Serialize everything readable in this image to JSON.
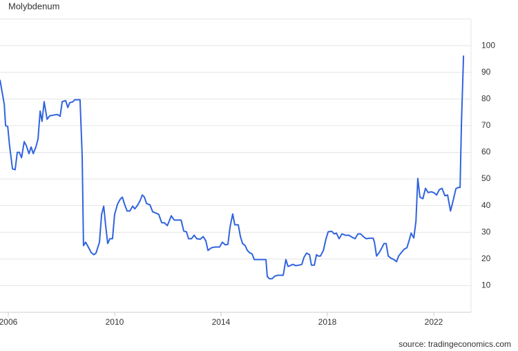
{
  "chart_data": {
    "type": "line",
    "title": "Molybdenum",
    "source": "source: tradingeconomics.com",
    "x": [
      2005.69,
      2005.85,
      2005.9,
      2005.98,
      2006.05,
      2006.16,
      2006.26,
      2006.34,
      2006.42,
      2006.5,
      2006.6,
      2006.68,
      2006.78,
      2006.86,
      2006.94,
      2007.04,
      2007.12,
      2007.2,
      2007.27,
      2007.35,
      2007.46,
      2007.56,
      2007.72,
      2007.85,
      2007.95,
      2008.03,
      2008.16,
      2008.24,
      2008.31,
      2008.42,
      2008.5,
      2008.63,
      2008.7,
      2008.78,
      2008.83,
      2008.91,
      2009.02,
      2009.12,
      2009.22,
      2009.3,
      2009.43,
      2009.51,
      2009.59,
      2009.66,
      2009.74,
      2009.82,
      2009.92,
      2010.0,
      2010.11,
      2010.21,
      2010.29,
      2010.37,
      2010.47,
      2010.57,
      2010.68,
      2010.76,
      2010.86,
      2010.96,
      2011.04,
      2011.12,
      2011.2,
      2011.33,
      2011.43,
      2011.56,
      2011.66,
      2011.77,
      2011.87,
      2011.98,
      2012.05,
      2012.13,
      2012.24,
      2012.39,
      2012.5,
      2012.6,
      2012.7,
      2012.78,
      2012.89,
      2012.99,
      2013.09,
      2013.22,
      2013.33,
      2013.43,
      2013.51,
      2013.64,
      2013.79,
      2013.95,
      2014.05,
      2014.16,
      2014.26,
      2014.34,
      2014.44,
      2014.52,
      2014.65,
      2014.73,
      2014.81,
      2014.91,
      2014.99,
      2015.07,
      2015.17,
      2015.25,
      2015.35,
      2015.51,
      2015.69,
      2015.74,
      2015.82,
      2015.92,
      2016.03,
      2016.13,
      2016.24,
      2016.34,
      2016.44,
      2016.52,
      2016.6,
      2016.7,
      2016.81,
      2016.94,
      2017.04,
      2017.12,
      2017.22,
      2017.33,
      2017.4,
      2017.51,
      2017.59,
      2017.66,
      2017.74,
      2017.85,
      2017.95,
      2018.03,
      2018.16,
      2018.26,
      2018.34,
      2018.44,
      2018.55,
      2018.68,
      2018.81,
      2018.94,
      2019.04,
      2019.15,
      2019.25,
      2019.35,
      2019.46,
      2019.59,
      2019.72,
      2019.77,
      2019.85,
      2019.95,
      2020.05,
      2020.13,
      2020.21,
      2020.29,
      2020.39,
      2020.5,
      2020.6,
      2020.68,
      2020.78,
      2020.89,
      2020.99,
      2021.07,
      2021.15,
      2021.25,
      2021.33,
      2021.4,
      2021.48,
      2021.59,
      2021.69,
      2021.79,
      2021.9,
      2022.0,
      2022.11,
      2022.21,
      2022.31,
      2022.42,
      2022.52,
      2022.63,
      2022.73,
      2022.83,
      2022.91,
      2022.99,
      2023.04,
      2023.12
    ],
    "values": [
      87.2,
      78,
      70,
      69.7,
      62.5,
      53.8,
      53.5,
      60,
      60,
      58,
      64,
      62.5,
      59.5,
      62,
      59.5,
      62,
      65,
      75.5,
      71.6,
      79,
      72.4,
      73.7,
      74,
      74.2,
      73.5,
      79,
      79.4,
      76.8,
      78.6,
      78.9,
      79.7,
      79.7,
      79.7,
      58.7,
      25,
      26.3,
      24.3,
      22.4,
      21.6,
      22.2,
      26.3,
      36.7,
      39.8,
      32.8,
      25.8,
      27.6,
      27.6,
      36.7,
      40.6,
      42.4,
      43.2,
      40.6,
      38,
      38,
      39.8,
      38.8,
      40.1,
      41.9,
      44,
      43.2,
      40.8,
      40.3,
      37.7,
      37.2,
      36.7,
      33.6,
      33.6,
      32.5,
      34.1,
      36.2,
      34.6,
      34.6,
      34.6,
      30.5,
      30.2,
      27.6,
      27.6,
      28.9,
      27.6,
      27.4,
      28.4,
      26.8,
      23.2,
      24.2,
      24.5,
      24.5,
      26.3,
      25.3,
      25.5,
      32,
      36.9,
      32.8,
      32.8,
      28.4,
      25.8,
      25,
      23.2,
      22.4,
      21.9,
      19.8,
      19.8,
      19.8,
      19.8,
      13.4,
      12.6,
      12.6,
      13.6,
      13.9,
      13.9,
      13.9,
      19.8,
      17.2,
      17.5,
      18,
      17.5,
      17.7,
      18,
      20.6,
      22.2,
      21.6,
      17.7,
      17.7,
      21.6,
      21.1,
      21.1,
      23.2,
      27.6,
      30.2,
      30.4,
      29.4,
      29.7,
      27.6,
      29.4,
      28.9,
      28.9,
      28.1,
      27.6,
      29.4,
      29.4,
      28.4,
      27.6,
      27.8,
      27.8,
      26.3,
      21.1,
      22.4,
      24.2,
      25.8,
      25.8,
      21.1,
      20.3,
      19.8,
      19,
      21.1,
      22.4,
      23.7,
      24.2,
      26.8,
      29.7,
      27.9,
      34.1,
      50.2,
      43.2,
      42.6,
      46.5,
      44.9,
      45.2,
      44.9,
      44,
      46,
      46.5,
      43.7,
      44,
      38,
      41.9,
      46.3,
      46.8,
      46.8,
      70.4,
      96.3
    ],
    "color": "#2f63de",
    "xlim": [
      2005.69,
      2023.35
    ],
    "xticks": [
      2006,
      2010,
      2014,
      2018,
      2022
    ],
    "ylim": [
      0,
      110
    ],
    "yticks": [
      10,
      20,
      30,
      40,
      50,
      60,
      70,
      80,
      90,
      100
    ],
    "grid": true
  }
}
